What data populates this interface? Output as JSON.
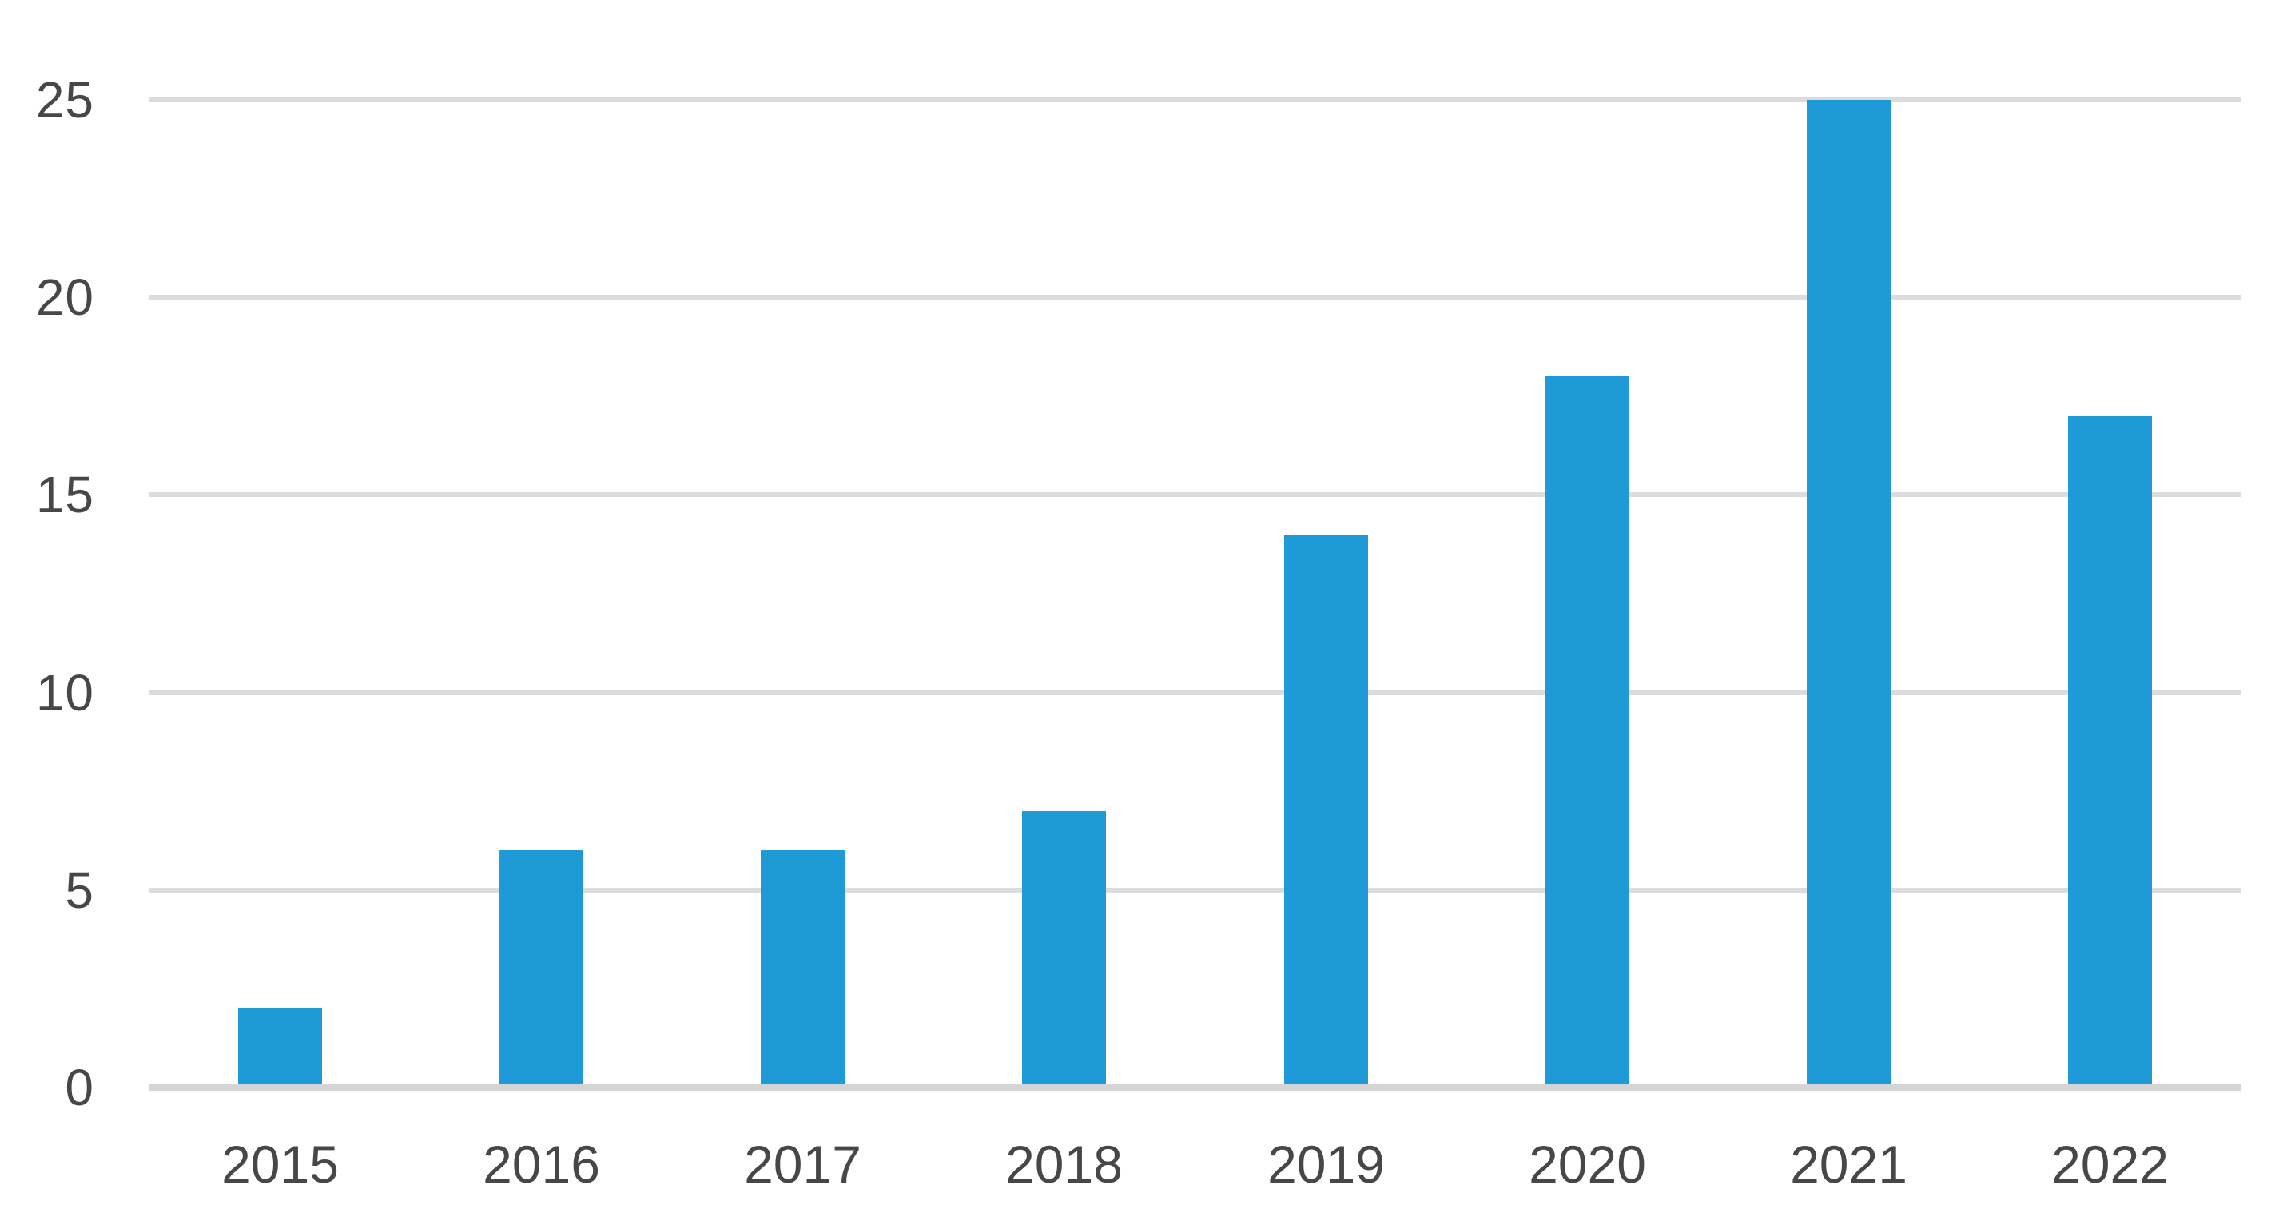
{
  "chart_data": {
    "type": "bar",
    "title": "",
    "xlabel": "",
    "ylabel": "",
    "categories": [
      "2015",
      "2016",
      "2017",
      "2018",
      "2019",
      "2020",
      "2021",
      "2022"
    ],
    "values": [
      2,
      6,
      6,
      7,
      14,
      18,
      25,
      17
    ],
    "ylim": [
      0,
      25
    ],
    "yticks": [
      0,
      5,
      10,
      15,
      20,
      25
    ],
    "grid": "horizontal-only",
    "legend": "none",
    "colors": {
      "bar": "#1E9AD6",
      "gridline": "#DCDCDC",
      "axis_line": "#D5D5D5",
      "tick_label": "#474747"
    }
  }
}
